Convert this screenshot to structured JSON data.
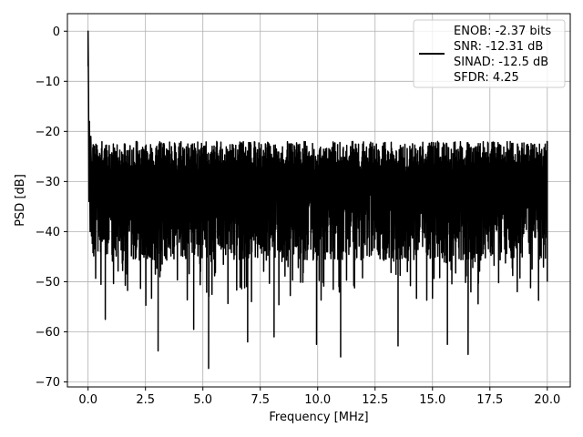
{
  "chart_data": {
    "type": "line",
    "title": "",
    "xlabel": "Frequency [MHz]",
    "ylabel": "PSD [dB]",
    "xlim": [
      -0.9,
      21.0
    ],
    "ylim": [
      -71,
      3.5
    ],
    "xticks": [
      0.0,
      2.5,
      5.0,
      7.5,
      10.0,
      12.5,
      15.0,
      17.5,
      20.0
    ],
    "xtick_labels": [
      "0.0",
      "2.5",
      "5.0",
      "7.5",
      "10.0",
      "12.5",
      "15.0",
      "17.5",
      "20.0"
    ],
    "yticks": [
      0,
      -10,
      -20,
      -30,
      -40,
      -50,
      -60,
      -70
    ],
    "ytick_labels": [
      "0",
      "−10",
      "−20",
      "−30",
      "−40",
      "−50",
      "−60",
      "−70"
    ],
    "grid": true,
    "legend_position": "top-right",
    "legend": [
      "ENOB: -2.37 bits",
      "SNR: -12.31 dB",
      "SINAD: -12.5 dB",
      "SFDR: 4.25"
    ],
    "series": [
      {
        "color": "#000000",
        "x_range": [
          0,
          20
        ],
        "noise_band": {
          "typical_top": -22,
          "typical_bottom": -44,
          "floor_min": -67.3
        },
        "peak": {
          "x": 0.0,
          "y": 0.0
        },
        "notable_dips": [
          {
            "x": 0.75,
            "y": -57.5
          },
          {
            "x": 3.05,
            "y": -63.8
          },
          {
            "x": 4.6,
            "y": -59.5
          },
          {
            "x": 5.25,
            "y": -67.3
          },
          {
            "x": 6.95,
            "y": -62.0
          },
          {
            "x": 8.1,
            "y": -61.0
          },
          {
            "x": 9.95,
            "y": -62.5
          },
          {
            "x": 11.0,
            "y": -65.0
          },
          {
            "x": 13.5,
            "y": -62.8
          },
          {
            "x": 15.65,
            "y": -62.5
          },
          {
            "x": 16.55,
            "y": -64.5
          }
        ]
      }
    ]
  }
}
